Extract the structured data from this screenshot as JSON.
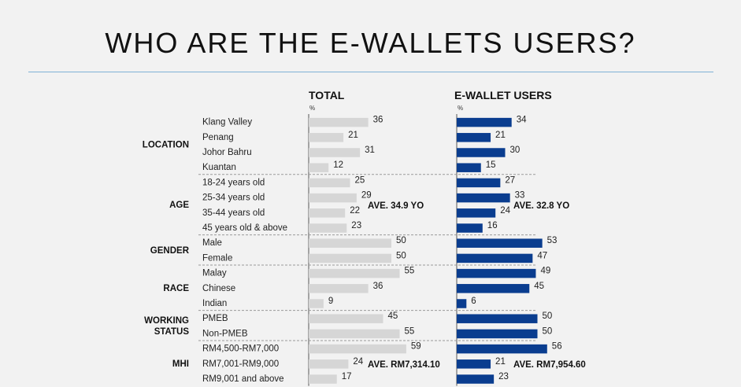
{
  "title": "WHO ARE THE E-WALLETS USERS?",
  "colors": {
    "total_bar": "#d6d6d6",
    "users_bar": "#0a3d8f",
    "axis": "#8a8a8a",
    "divider": "#9a9a9a"
  },
  "chart_data": {
    "type": "bar",
    "orientation": "horizontal",
    "unit": "%",
    "groups": [
      {
        "name": "LOCATION",
        "categories": [
          "Klang Valley",
          "Penang",
          "Johor Bahru",
          "Kuantan"
        ]
      },
      {
        "name": "AGE",
        "categories": [
          "18-24 years old",
          "25-34 years old",
          "35-44 years old",
          "45 years old & above"
        ]
      },
      {
        "name": "GENDER",
        "categories": [
          "Male",
          "Female"
        ]
      },
      {
        "name": "RACE",
        "categories": [
          "Malay",
          "Chinese",
          "Indian"
        ]
      },
      {
        "name": "WORKING\nSTATUS",
        "categories": [
          "PMEB",
          "Non-PMEB"
        ]
      },
      {
        "name": "MHI",
        "categories": [
          "RM4,500-RM7,000",
          "RM7,001-RM9,000",
          "RM9,001 and above"
        ]
      }
    ],
    "series": [
      {
        "name": "TOTAL",
        "values": [
          36,
          21,
          31,
          12,
          25,
          29,
          22,
          23,
          50,
          50,
          55,
          36,
          9,
          45,
          55,
          59,
          24,
          17
        ],
        "annotations": [
          {
            "group": "AGE",
            "text": "AVE. 34.9 YO"
          },
          {
            "group": "MHI",
            "text": "AVE. RM7,314.10"
          }
        ]
      },
      {
        "name": "E-WALLET USERS",
        "values": [
          34,
          21,
          30,
          15,
          27,
          33,
          24,
          16,
          53,
          47,
          49,
          45,
          6,
          50,
          50,
          56,
          21,
          23
        ],
        "annotations": [
          {
            "group": "AGE",
            "text": "AVE. 32.8 YO"
          },
          {
            "group": "MHI",
            "text": "AVE. RM7,954.60"
          }
        ]
      }
    ],
    "xlim": [
      0,
      100
    ]
  }
}
